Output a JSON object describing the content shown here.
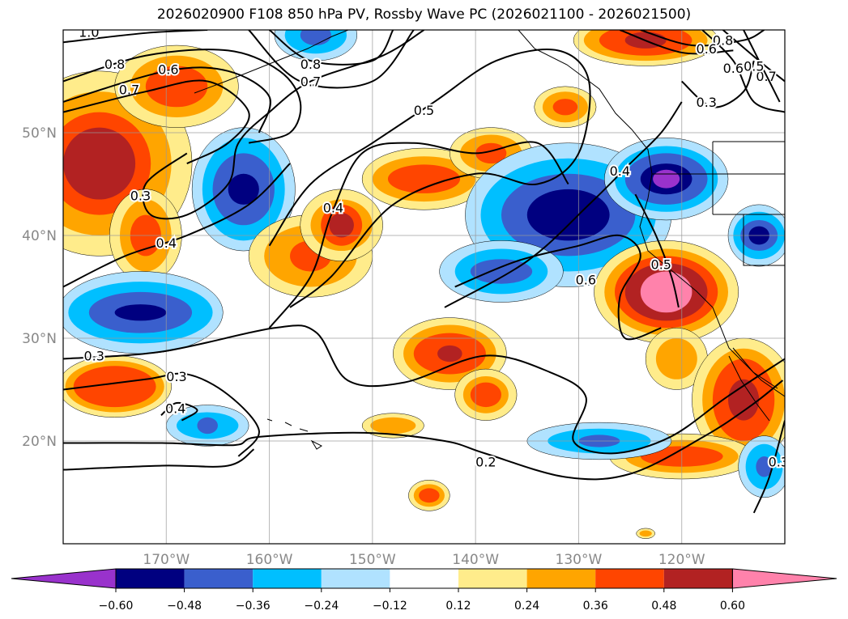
{
  "title": "2026020900 F108 850 hPa PV, Rossby Wave PC (2026021100 - 2026021500)",
  "map": {
    "lon_range": [
      -180,
      -110
    ],
    "lat_range": [
      10,
      60
    ],
    "lon_ticks": [
      {
        "v": -170,
        "label": "170°W"
      },
      {
        "v": -160,
        "label": "160°W"
      },
      {
        "v": -150,
        "label": "150°W"
      },
      {
        "v": -140,
        "label": "140°W"
      },
      {
        "v": -130,
        "label": "130°W"
      },
      {
        "v": -120,
        "label": "120°W"
      }
    ],
    "lat_ticks": [
      {
        "v": 20,
        "label": "20°N"
      },
      {
        "v": 30,
        "label": "30°N"
      },
      {
        "v": 40,
        "label": "40°N"
      },
      {
        "v": 50,
        "label": "50°N"
      }
    ]
  },
  "colorbar": {
    "colors": [
      "#9932CC",
      "#000080",
      "#3A5FCD",
      "#00BFFF",
      "#B0E2FF",
      "#FFFFFF",
      "#FFEC8B",
      "#FFA500",
      "#FF4500",
      "#B22222",
      "#FF82AB"
    ],
    "ticks": [
      "−0.60",
      "−0.48",
      "−0.36",
      "−0.24",
      "−0.12",
      "0.12",
      "0.24",
      "0.36",
      "0.48",
      "0.60"
    ]
  },
  "anomalies": [
    {
      "lon": -176.5,
      "lat": 47,
      "sign": 1,
      "radii": [
        [
          9,
          9
        ],
        [
          7,
          7
        ],
        [
          5,
          5
        ],
        [
          3.5,
          3.5
        ]
      ]
    },
    {
      "lon": -169,
      "lat": 54.5,
      "sign": 1,
      "radii": [
        [
          6,
          4
        ],
        [
          4.5,
          3
        ],
        [
          3,
          2
        ]
      ]
    },
    {
      "lon": -172,
      "lat": 40,
      "sign": 1,
      "radii": [
        [
          3.5,
          4.5
        ],
        [
          2.5,
          3.5
        ],
        [
          1.5,
          2
        ]
      ]
    },
    {
      "lon": -162.5,
      "lat": 44.5,
      "sign": -1,
      "radii": [
        [
          5,
          6
        ],
        [
          4,
          5
        ],
        [
          3,
          3.5
        ],
        [
          1.5,
          1.5
        ]
      ]
    },
    {
      "lon": -156,
      "lat": 38,
      "sign": 1,
      "radii": [
        [
          6,
          4
        ],
        [
          4.5,
          3
        ],
        [
          2,
          1.5
        ]
      ]
    },
    {
      "lon": -153,
      "lat": 41,
      "sign": 1,
      "radii": [
        [
          4,
          3.5
        ],
        [
          3,
          2.5
        ],
        [
          2,
          2
        ],
        [
          1.2,
          1.2
        ]
      ]
    },
    {
      "lon": -145,
      "lat": 45.5,
      "sign": 1,
      "radii": [
        [
          6,
          3
        ],
        [
          5,
          2.2
        ],
        [
          3.5,
          1.4
        ]
      ]
    },
    {
      "lon": -138.5,
      "lat": 48,
      "sign": 1,
      "radii": [
        [
          4,
          2.5
        ],
        [
          3,
          1.8
        ],
        [
          1.5,
          1
        ]
      ]
    },
    {
      "lon": -131,
      "lat": 42,
      "sign": -1,
      "radii": [
        [
          10,
          7
        ],
        [
          8.5,
          5.5
        ],
        [
          6.5,
          4
        ],
        [
          4,
          2.5
        ]
      ]
    },
    {
      "lon": -121.5,
      "lat": 45.5,
      "sign": -1,
      "radii": [
        [
          6,
          4
        ],
        [
          5,
          3.2
        ],
        [
          4,
          2.5
        ],
        [
          2.5,
          1.5
        ],
        [
          1.3,
          0.9
        ]
      ]
    },
    {
      "lon": -137.5,
      "lat": 36.5,
      "sign": -1,
      "radii": [
        [
          6,
          3
        ],
        [
          4.5,
          2.2
        ],
        [
          3,
          1.2
        ]
      ]
    },
    {
      "lon": -121.5,
      "lat": 34.5,
      "sign": 1,
      "radii": [
        [
          7,
          5
        ],
        [
          6,
          4.2
        ],
        [
          5,
          3.5
        ],
        [
          4,
          2.8
        ],
        [
          2.5,
          2
        ]
      ]
    },
    {
      "lon": -120.5,
      "lat": 28,
      "sign": 1,
      "radii": [
        [
          3,
          3
        ],
        [
          2,
          2
        ]
      ]
    },
    {
      "lon": -142.5,
      "lat": 28.5,
      "sign": 1,
      "radii": [
        [
          5.5,
          3.5
        ],
        [
          4.5,
          2.8
        ],
        [
          3.5,
          2
        ],
        [
          1.2,
          0.8
        ]
      ]
    },
    {
      "lon": -139,
      "lat": 24.5,
      "sign": 1,
      "radii": [
        [
          3,
          2.5
        ],
        [
          2.2,
          1.8
        ],
        [
          1.5,
          1.2
        ]
      ]
    },
    {
      "lon": -175,
      "lat": 25.3,
      "sign": 1,
      "radii": [
        [
          5.5,
          3
        ],
        [
          4.8,
          2.5
        ],
        [
          4,
          2
        ]
      ]
    },
    {
      "lon": -172.5,
      "lat": 32.5,
      "sign": -1,
      "radii": [
        [
          8,
          4
        ],
        [
          7,
          3
        ],
        [
          5,
          2
        ],
        [
          2.5,
          0.8
        ]
      ]
    },
    {
      "lon": -112.5,
      "lat": 40,
      "sign": -1,
      "radii": [
        [
          3,
          3
        ],
        [
          2.5,
          2.3
        ],
        [
          1.8,
          1.5
        ],
        [
          1,
          0.9
        ]
      ]
    },
    {
      "lon": -114,
      "lat": 24,
      "sign": 1,
      "radii": [
        [
          5,
          6
        ],
        [
          4,
          5
        ],
        [
          3,
          4
        ],
        [
          1.5,
          2
        ]
      ]
    },
    {
      "lon": -120,
      "lat": 18.5,
      "sign": 1,
      "radii": [
        [
          7,
          2.2
        ],
        [
          5.5,
          1.6
        ],
        [
          4,
          1
        ]
      ]
    },
    {
      "lon": -123.5,
      "lat": 59,
      "sign": 1,
      "radii": [
        [
          7,
          2.5
        ],
        [
          6,
          2
        ],
        [
          4.5,
          1.5
        ],
        [
          2,
          0.8
        ]
      ]
    },
    {
      "lon": -131.3,
      "lat": 52.5,
      "sign": 1,
      "radii": [
        [
          3,
          2
        ],
        [
          2.2,
          1.5
        ],
        [
          1.2,
          0.8
        ]
      ]
    },
    {
      "lon": -155.5,
      "lat": 59.5,
      "sign": -1,
      "radii": [
        [
          4,
          2.5
        ],
        [
          3,
          1.8
        ],
        [
          1.5,
          1
        ]
      ]
    },
    {
      "lon": -166,
      "lat": 21.5,
      "sign": -1,
      "radii": [
        [
          4,
          2
        ],
        [
          3,
          1.3
        ],
        [
          1,
          0.8
        ]
      ]
    },
    {
      "lon": -128,
      "lat": 20,
      "sign": -1,
      "radii": [
        [
          7,
          1.8
        ],
        [
          5,
          1.2
        ],
        [
          2,
          0.6
        ]
      ]
    },
    {
      "lon": -148,
      "lat": 21.5,
      "sign": 1,
      "radii": [
        [
          3,
          1.2
        ],
        [
          2.2,
          0.8
        ]
      ]
    },
    {
      "lon": -144.5,
      "lat": 14.7,
      "sign": 1,
      "radii": [
        [
          2,
          1.5
        ],
        [
          1.5,
          1.1
        ],
        [
          1,
          0.7
        ]
      ]
    },
    {
      "lon": -112,
      "lat": 17.5,
      "sign": -1,
      "radii": [
        [
          2.5,
          3
        ],
        [
          1.8,
          2.2
        ],
        [
          0.8,
          1
        ]
      ]
    },
    {
      "lon": -123.5,
      "lat": 11,
      "sign": 1,
      "radii": [
        [
          0.9,
          0.5
        ],
        [
          0.6,
          0.3
        ]
      ]
    }
  ],
  "contours": [
    {
      "label": "1.0",
      "label_at": [
        -177.5,
        59.8
      ],
      "pts": [
        [
          -180,
          58.8
        ],
        [
          -172,
          59.7
        ],
        [
          -166,
          60
        ]
      ]
    },
    {
      "label": "0.8",
      "label_at": [
        -175,
        56.7
      ],
      "pts": [
        [
          -180,
          55
        ],
        [
          -172,
          57.5
        ],
        [
          -164,
          58
        ],
        [
          -159,
          56
        ],
        [
          -157,
          53
        ],
        [
          -158,
          50
        ],
        [
          -162,
          49
        ]
      ]
    },
    {
      "label": "0.7",
      "label_at": [
        -173.6,
        54.2
      ],
      "pts": [
        [
          -180,
          53
        ],
        [
          -170,
          56
        ],
        [
          -164,
          56
        ],
        [
          -160,
          53.5
        ],
        [
          -161,
          50
        ]
      ]
    },
    {
      "label": "0.6",
      "label_at": [
        -169.8,
        56.2
      ],
      "pts": [
        [
          -180,
          52
        ],
        [
          -172,
          54
        ],
        [
          -166,
          55
        ],
        [
          -162,
          52
        ],
        [
          -164,
          49
        ],
        [
          -168,
          47
        ]
      ]
    },
    {
      "label": "0.3",
      "label_at": [
        -172.5,
        43.9
      ],
      "pts": [
        [
          -168,
          48
        ],
        [
          -172,
          45
        ],
        [
          -171.5,
          42
        ],
        [
          -168,
          42
        ],
        [
          -164,
          45
        ],
        [
          -163,
          49
        ],
        [
          -160,
          52
        ],
        [
          -156,
          55
        ],
        [
          -149,
          57.5
        ],
        [
          -145,
          60
        ]
      ]
    },
    {
      "label": "0.5",
      "label_at": [
        -145,
        52.2
      ],
      "pts": [
        [
          -160,
          39
        ],
        [
          -156,
          45
        ],
        [
          -150,
          49
        ],
        [
          -144,
          53
        ],
        [
          -138,
          57
        ],
        [
          -132,
          58
        ],
        [
          -129,
          55
        ],
        [
          -130,
          48
        ],
        [
          -134,
          45
        ],
        [
          -140,
          46
        ],
        [
          -148,
          43
        ],
        [
          -154,
          36
        ],
        [
          -158,
          33
        ]
      ]
    },
    {
      "label": "0.8",
      "label_at": [
        -156,
        56.7
      ],
      "pts": [
        [
          -160,
          60
        ],
        [
          -156,
          57
        ],
        [
          -150,
          57
        ],
        [
          -148,
          60
        ]
      ]
    },
    {
      "label": "0.7",
      "label_at": [
        -156,
        55
      ],
      "pts": [
        [
          -162,
          60
        ],
        [
          -157,
          55
        ],
        [
          -150,
          55
        ],
        [
          -146,
          60
        ]
      ]
    },
    {
      "label": "0.4",
      "label_at": [
        -170,
        39.3
      ],
      "pts": [
        [
          -180,
          35
        ],
        [
          -174,
          38
        ],
        [
          -168,
          40
        ],
        [
          -162,
          43
        ],
        [
          -158,
          47
        ]
      ]
    },
    {
      "label": "0.4",
      "label_at": [
        -153.8,
        42.7
      ],
      "pts": [
        [
          -160,
          31
        ],
        [
          -156,
          36
        ],
        [
          -154,
          42
        ],
        [
          -151,
          48
        ],
        [
          -146,
          49
        ],
        [
          -140,
          48
        ],
        [
          -134,
          49
        ],
        [
          -131,
          45
        ]
      ]
    },
    {
      "label": "0.3",
      "label_at": [
        -177,
        28.3
      ],
      "pts": [
        [
          -180,
          28
        ],
        [
          -170.4,
          28.7
        ],
        [
          -159.5,
          31
        ],
        [
          -155.5,
          30.6
        ],
        [
          -152.4,
          25.9
        ],
        [
          -146.9,
          25.7
        ],
        [
          -139.1,
          28.3
        ],
        [
          -132.8,
          26.7
        ],
        [
          -129.3,
          24.3
        ],
        [
          -130.5,
          20
        ],
        [
          -126.6,
          18.8
        ],
        [
          -121.1,
          20.4
        ],
        [
          -115.6,
          24.3
        ],
        [
          -110,
          28
        ]
      ]
    },
    {
      "label": "0.3",
      "label_at": [
        -169,
        26.3
      ],
      "pts": [
        [
          -180,
          25
        ],
        [
          -172,
          26
        ],
        [
          -168,
          26.5
        ],
        [
          -164,
          24.5
        ],
        [
          -161,
          21
        ],
        [
          -163,
          18.5
        ]
      ]
    },
    {
      "label": "0.4",
      "label_at": [
        -169.1,
        23.2
      ],
      "pts": [
        [
          -170.5,
          22.5
        ],
        [
          -169,
          23.7
        ],
        [
          -167,
          23
        ],
        [
          -168.5,
          22
        ]
      ]
    },
    {
      "label": "0.2",
      "label_at": [
        -139,
        18
      ],
      "pts": [
        [
          -180,
          19.8
        ],
        [
          -170.4,
          19.8
        ],
        [
          -163.4,
          19.6
        ],
        [
          -161,
          20.4
        ],
        [
          -150.8,
          20.8
        ],
        [
          -143,
          20
        ],
        [
          -139.1,
          18.8
        ],
        [
          -131.3,
          16.5
        ],
        [
          -125,
          16.8
        ],
        [
          -117.9,
          20.4
        ],
        [
          -113.2,
          23.5
        ],
        [
          -110.2,
          25.9
        ]
      ]
    },
    {
      "label": "",
      "label_at": null,
      "pts": [
        [
          -180,
          17.2
        ],
        [
          -170.4,
          17.6
        ],
        [
          -164,
          17.6
        ],
        [
          -161.5,
          19.2
        ]
      ]
    },
    {
      "label": "0.6",
      "label_at": [
        -129.3,
        35.7
      ],
      "pts": [
        [
          -142,
          35
        ],
        [
          -136,
          37.5
        ],
        [
          -130,
          39
        ],
        [
          -126,
          40
        ],
        [
          -124,
          38
        ],
        [
          -126,
          34
        ],
        [
          -125.5,
          30
        ],
        [
          -122,
          31
        ]
      ]
    },
    {
      "label": "0.5",
      "label_at": [
        -122,
        37.2
      ],
      "pts": [
        [
          -124.5,
          44
        ],
        [
          -122.5,
          40
        ],
        [
          -121,
          36
        ],
        [
          -120.3,
          33
        ]
      ]
    },
    {
      "label": "0.4",
      "label_at": [
        -126,
        46.3
      ],
      "pts": [
        [
          -143,
          33
        ],
        [
          -135,
          37.5
        ],
        [
          -129,
          43
        ],
        [
          -125,
          47
        ],
        [
          -122,
          50
        ],
        [
          -120,
          53
        ]
      ]
    },
    {
      "label": "0.3",
      "label_at": [
        -117.6,
        53
      ],
      "pts": [
        [
          -120,
          55
        ],
        [
          -117,
          52.5
        ],
        [
          -114,
          54
        ],
        [
          -113,
          57
        ]
      ]
    },
    {
      "label": "0.6",
      "label_at": [
        -115,
        56.3
      ],
      "pts": [
        [
          -118,
          60
        ],
        [
          -115,
          57
        ],
        [
          -113,
          53
        ],
        [
          -110,
          52
        ]
      ]
    },
    {
      "label": "0.7",
      "label_at": [
        -111.8,
        55.5
      ],
      "pts": [
        [
          -116,
          60
        ],
        [
          -112.5,
          57
        ],
        [
          -110,
          55
        ]
      ]
    },
    {
      "label": "0.8",
      "label_at": [
        -116,
        59
      ],
      "pts": [
        [
          -124,
          60
        ],
        [
          -119,
          58.5
        ],
        [
          -114,
          59
        ],
        [
          -112,
          60
        ]
      ]
    },
    {
      "label": "0.6",
      "label_at": [
        -117.6,
        58.2
      ],
      "pts": [
        [
          -126,
          60
        ],
        [
          -120,
          57.8
        ],
        [
          -115,
          58
        ]
      ]
    },
    {
      "label": "0.5",
      "label_at": [
        -113,
        56.5
      ],
      "pts": [
        [
          -114,
          60
        ],
        [
          -112,
          56
        ],
        [
          -110.5,
          53
        ]
      ]
    },
    {
      "label": "0.3",
      "label_at": [
        -110.6,
        18
      ],
      "pts": [
        [
          -113,
          13
        ],
        [
          -111.5,
          16.5
        ],
        [
          -110,
          22
        ]
      ]
    }
  ]
}
